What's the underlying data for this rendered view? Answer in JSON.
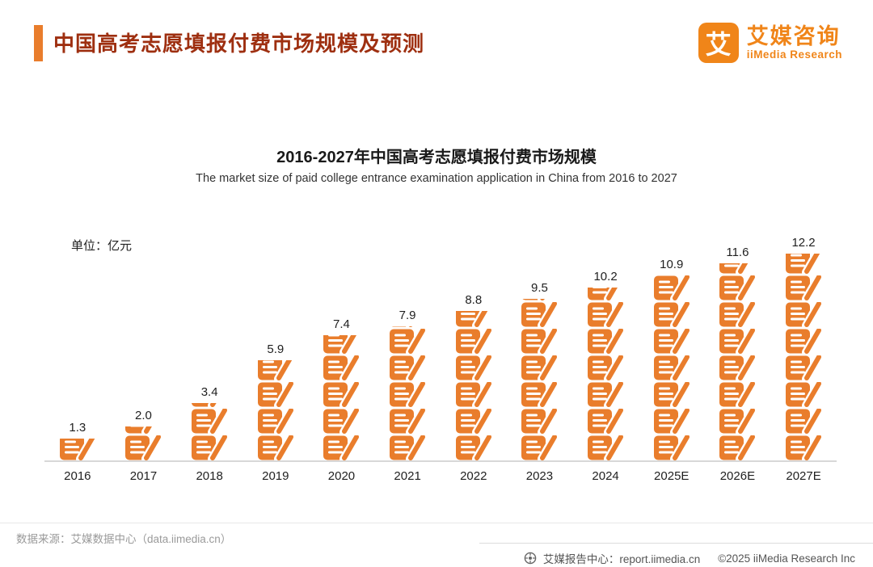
{
  "header": {
    "title": "中国高考志愿填报付费市场规模及预测",
    "logo_mark": "艾",
    "logo_cn": "艾媒咨询",
    "logo_en": "iiMedia Research"
  },
  "chart_data": {
    "type": "bar",
    "title": "2016-2027年中国高考志愿填报付费市场规模",
    "subtitle": "The market size of paid college entrance examination application in China from 2016 to 2027",
    "unit": "单位：亿元",
    "categories": [
      "2016",
      "2017",
      "2018",
      "2019",
      "2020",
      "2021",
      "2022",
      "2023",
      "2024",
      "2025E",
      "2026E",
      "2027E"
    ],
    "values": [
      1.3,
      2.0,
      3.4,
      5.9,
      7.4,
      7.9,
      8.8,
      9.5,
      10.2,
      10.9,
      11.6,
      12.2
    ],
    "ylabel": "亿元",
    "ylim": [
      0,
      13
    ],
    "grid": false,
    "legend": "none",
    "bar_color": "#e97d2c",
    "pictogram": "document-pen-icon"
  },
  "footer": {
    "source": "数据来源：艾媒数据中心（data.iimedia.cn）",
    "report_center": "艾媒报告中心：report.iimedia.cn",
    "copyright": "©2025  iiMedia Research Inc"
  },
  "colors": {
    "accent_orange": "#e97d2c",
    "logo_orange": "#f08519",
    "title_red": "#9e2f10",
    "axis_gray": "#d8d8d8",
    "footer_gray": "#9a9a9a"
  }
}
